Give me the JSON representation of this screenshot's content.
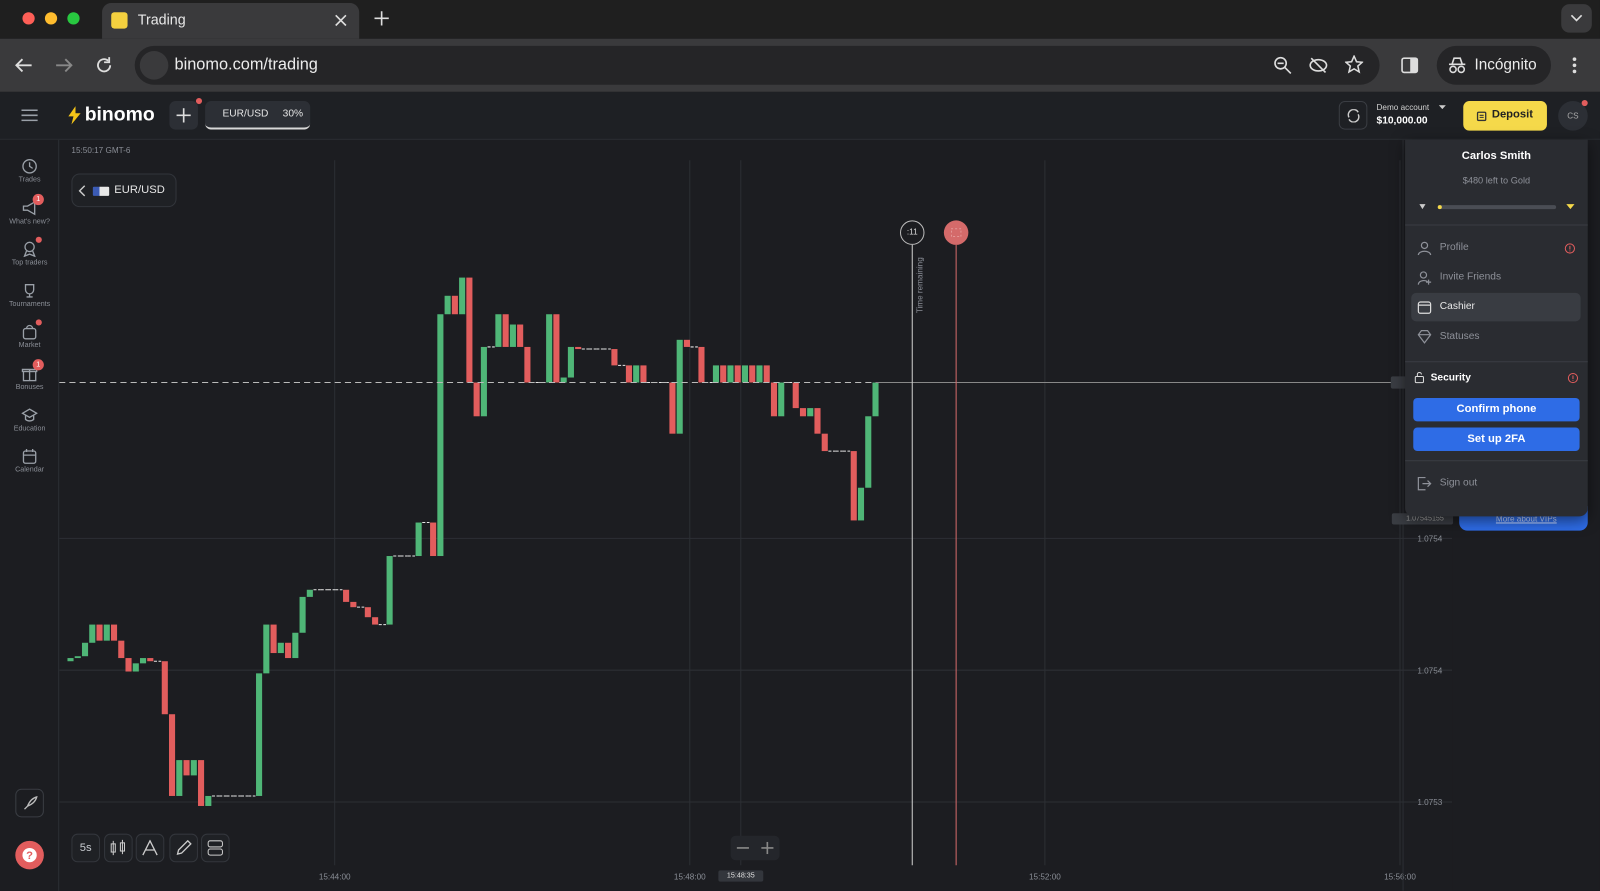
{
  "browser": {
    "tab_title": "Trading",
    "url": "binomo.com/trading",
    "incognito": "Incógnito"
  },
  "app": {
    "logo": "binomo",
    "asset": "EUR/USD",
    "payout": "30%",
    "account_type": "Demo account",
    "balance": "$10,000.00",
    "deposit": "Deposit",
    "avatar": "CS"
  },
  "sidebar": {
    "items": [
      {
        "label": "Trades"
      },
      {
        "label": "What's new?",
        "badge": "1"
      },
      {
        "label": "Top traders"
      },
      {
        "label": "Tournaments"
      },
      {
        "label": "Market"
      },
      {
        "label": "Bonuses",
        "badge": "1"
      },
      {
        "label": "Education"
      },
      {
        "label": "Calendar"
      }
    ]
  },
  "chart_panel": {
    "server_time": "15:50:17 GMT-6",
    "asset_button": "EUR/USD",
    "timer": ":11",
    "time_remaining": "Time remaining",
    "price_marker": "1.07545155",
    "current_time": "15:48:35",
    "timeframe": "5s",
    "time_labels": [
      "15:44:00",
      "15:48:00",
      "15:52:00",
      "15:56:00"
    ]
  },
  "chart_data": {
    "type": "candlestick",
    "close": [
      1.0753934,
      1.0753946,
      1.0753953,
      1.0754004,
      1.0754073,
      1.0754012,
      1.0754073,
      1.0754012,
      1.0753946,
      1.0753895,
      1.0753926,
      1.0753946,
      1.0753934,
      1.0753934,
      1.0753733,
      1.0753423,
      1.0753559,
      1.0753501,
      1.0753559,
      1.0753385,
      1.0753423,
      1.0753423,
      1.0753423,
      1.0753423,
      1.0753423,
      1.0753423,
      1.0753423,
      1.0753888,
      1.0754073,
      1.0753965,
      1.0754004,
      1.0753946,
      1.0754042,
      1.0754178,
      1.0754205,
      1.0754205,
      1.0754205,
      1.0754205,
      1.0754205,
      1.0754159,
      1.0754139,
      1.0754139,
      1.0754101,
      1.0754073,
      1.0754073,
      1.0754333,
      1.0754333,
      1.0754333,
      1.0754333,
      1.075446,
      1.075446,
      1.0754333,
      1.075525,
      1.075532,
      1.075525,
      1.0755389,
      1.0754991,
      1.0754863,
      1.0755126,
      1.0755126,
      1.075525,
      1.0755126,
      1.0755211,
      1.0755126,
      1.0754991,
      1.0754991,
      1.0754991,
      1.075525,
      1.0754991,
      1.075501,
      1.0755126,
      1.0755118,
      1.0755118,
      1.0755118,
      1.0755118,
      1.0755118,
      1.0755056,
      1.0755056,
      1.0754991,
      1.0755056,
      1.0754991,
      1.0754991,
      1.0754991,
      1.0754991,
      1.0754797,
      1.0755153,
      1.0755126,
      1.0755126,
      1.0754991,
      1.0754991,
      1.0755056,
      1.0754991,
      1.0755056,
      1.0754991,
      1.0755056,
      1.0754991,
      1.0755056,
      1.0754991,
      1.0754863,
      1.0754991,
      1.0754991,
      1.0754894,
      1.0754863,
      1.0754894,
      1.0754797,
      1.0754731,
      1.0754731,
      1.0754731,
      1.0754731,
      1.0754468,
      1.0754592,
      1.0754863,
      1.0754991
    ],
    "up_color": "#4fb677",
    "down_color": "#e25d5d",
    "ylim": [
      1.075316,
      1.07559
    ],
    "yticks": [
      {
        "value": 1.07544,
        "label": "1.0754"
      },
      {
        "value": 1.07539,
        "label": "1.0754"
      },
      {
        "value": 1.07534,
        "label": "1.0753"
      }
    ],
    "grid": true
  },
  "menu": {
    "name": "Carlos Smith",
    "status_note": "$480 left to Gold",
    "items": [
      {
        "label": "Profile"
      },
      {
        "label": "Invite Friends"
      },
      {
        "label": "Cashier"
      },
      {
        "label": "Statuses"
      }
    ],
    "security": "Security",
    "confirm_phone": "Confirm phone",
    "setup_2fa": "Set up 2FA",
    "sign_out": "Sign out",
    "vip_link": "More about VIPs"
  }
}
